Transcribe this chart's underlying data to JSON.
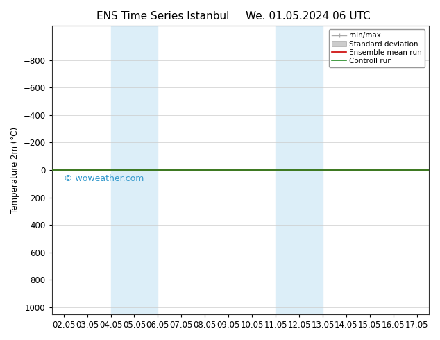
{
  "title_left": "ENS Time Series Istanbul",
  "title_right": "We. 01.05.2024 06 UTC",
  "ylabel": "Temperature 2m (°C)",
  "ylim_top": -1050,
  "ylim_bottom": 1050,
  "yticks": [
    -800,
    -600,
    -400,
    -200,
    0,
    200,
    400,
    600,
    800,
    1000
  ],
  "xtick_labels": [
    "02.05",
    "03.05",
    "04.05",
    "05.05",
    "06.05",
    "07.05",
    "08.05",
    "09.05",
    "10.05",
    "11.05",
    "12.05",
    "13.05",
    "14.05",
    "15.05",
    "16.05",
    "17.05"
  ],
  "xlim_min": -0.5,
  "xlim_max": 15.5,
  "shaded_bands": [
    {
      "x_start": 2,
      "x_end": 4,
      "color": "#dceef8"
    },
    {
      "x_start": 9,
      "x_end": 11,
      "color": "#dceef8"
    }
  ],
  "control_line_y": 0,
  "control_line_color": "#228B22",
  "ensemble_line_y": 0,
  "ensemble_line_color": "#cc0000",
  "watermark": "© woweather.com",
  "watermark_color": "#3399cc",
  "bg_color": "#ffffff",
  "plot_bg_color": "#ffffff",
  "grid_color": "#cccccc",
  "font_size": 8.5,
  "title_font_size": 11
}
